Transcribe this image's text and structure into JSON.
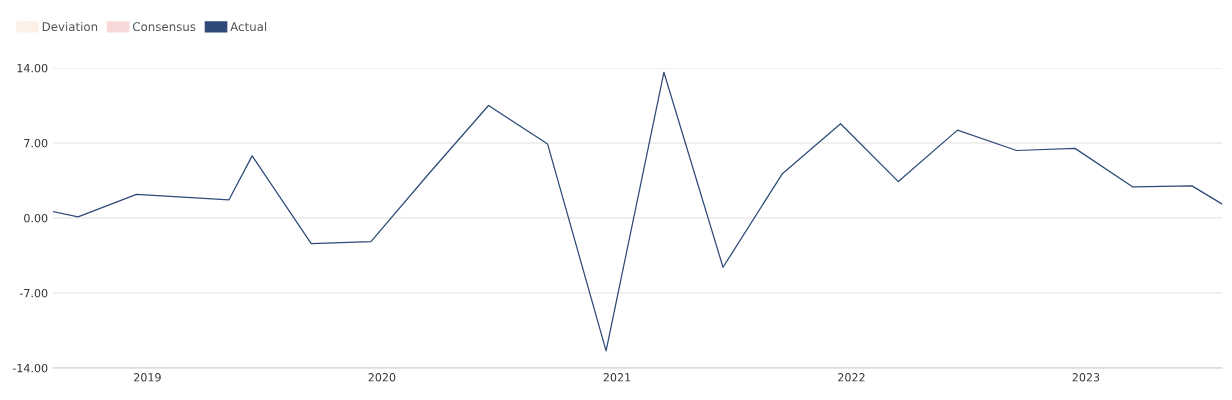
{
  "chart_data": {
    "type": "line",
    "x": [
      "2018-08-07",
      "2018-09-15",
      "2018-12-15",
      "2019-05-08",
      "2019-06-13",
      "2019-09-13",
      "2019-12-15",
      "2020-03-15",
      "2020-06-15",
      "2020-09-15",
      "2020-12-15",
      "2021-03-15",
      "2021-06-15",
      "2021-09-15",
      "2021-12-15",
      "2022-03-15",
      "2022-06-15",
      "2022-09-15",
      "2022-12-15",
      "2023-03-15",
      "2023-06-15",
      "2023-08-01"
    ],
    "series": [
      {
        "name": "Deviation",
        "color": "#fdf1e7",
        "values": [
          null,
          null,
          null,
          null,
          null,
          null,
          null,
          null,
          null,
          null,
          null,
          null,
          null,
          null,
          null,
          null,
          null,
          null,
          null,
          null,
          null,
          null
        ]
      },
      {
        "name": "Consensus",
        "color": "#f7d9d9",
        "values": [
          null,
          null,
          null,
          null,
          null,
          null,
          null,
          null,
          null,
          null,
          null,
          null,
          null,
          null,
          null,
          null,
          null,
          null,
          null,
          null,
          null,
          null
        ]
      },
      {
        "name": "Actual",
        "color": "#2e4a78",
        "values": [
          0.6,
          0.1,
          2.2,
          1.7,
          5.8,
          -2.4,
          -2.2,
          4.2,
          10.5,
          6.9,
          -12.4,
          13.6,
          -4.6,
          4.1,
          8.8,
          3.4,
          8.2,
          6.3,
          6.5,
          2.9,
          3.0,
          1.3
        ]
      }
    ],
    "xlim": [
      "2018-08-07",
      "2023-08-01"
    ],
    "xticks": [
      {
        "value": "2019-01-01",
        "label": "2019"
      },
      {
        "value": "2020-01-01",
        "label": "2020"
      },
      {
        "value": "2021-01-01",
        "label": "2021"
      },
      {
        "value": "2022-01-01",
        "label": "2022"
      },
      {
        "value": "2023-01-01",
        "label": "2023"
      }
    ],
    "ylim": [
      -14,
      14
    ],
    "yticks": [
      {
        "value": 14,
        "label": "14.00"
      },
      {
        "value": 7,
        "label": "7.00"
      },
      {
        "value": 0,
        "label": "0.00"
      },
      {
        "value": -7,
        "label": "-7.00"
      },
      {
        "value": -14,
        "label": "-14.00"
      }
    ],
    "grid": "y",
    "legend": "top left",
    "marker": "none",
    "line_style": "solid"
  }
}
